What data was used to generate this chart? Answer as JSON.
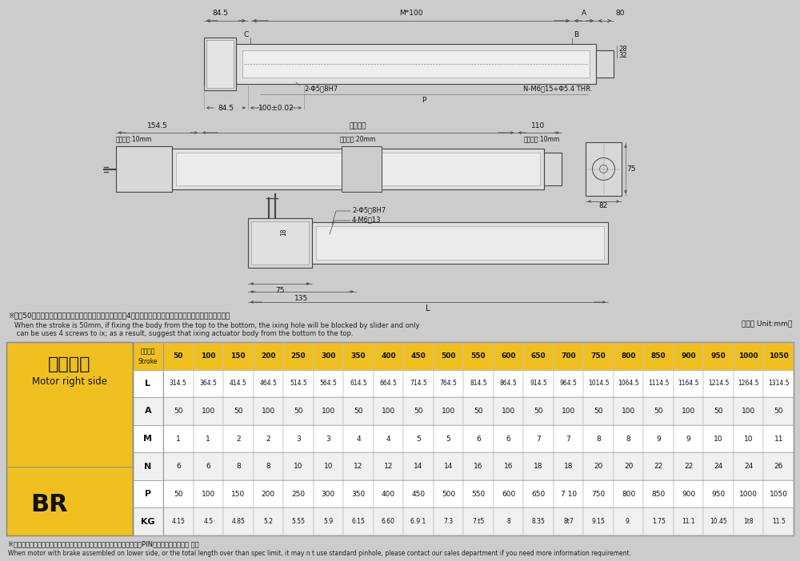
{
  "bg_color": "#cccccc",
  "diagram_bg": "#d4d4d4",
  "white_panel": "#e8e8e8",
  "yellow_color": "#f0c020",
  "line_color": "#444444",
  "dim_color": "#333333",
  "note_cn": "※行程50時，因本體上鎖式固定孔會被滑座遮住，僅能使用4支螺絲固定，建議客戶本體使用下鎖式固定孔鎖附。",
  "note_en1": "When the stroke is 50mm, if fixing the body from the top to the bottom, the ixing hole will be blocked by slider and only",
  "note_en2": " can be uses 4 screws to ix; as a result, suggest that ixing actuator body from the bottom to the top.",
  "unit_label": "（單位 Unit:mm）",
  "title_cn": "馬達右折",
  "title_en": "Motor right side",
  "title_br": "BR",
  "stroke_header_cn": "有效行程",
  "stroke_header_en": "Stroke",
  "strokes": [
    50,
    100,
    150,
    200,
    250,
    300,
    350,
    400,
    450,
    500,
    550,
    600,
    650,
    700,
    750,
    800,
    850,
    900,
    950,
    1000,
    1050
  ],
  "row_L_str": [
    "314.5",
    "364.5",
    "414.5",
    "464.5",
    "514.5",
    "564.5",
    "614.5",
    "664.5",
    "714.5",
    "764.5",
    "814.5",
    "864.5",
    "914.5",
    "964.5",
    "1014.5",
    "1064.5",
    "1114.5",
    "1164.5",
    "1214.5",
    "1264.5",
    "1314.5"
  ],
  "row_A_str": [
    "50",
    "100",
    "50",
    "100",
    "50",
    "100",
    "50",
    "100",
    "50",
    "100",
    "50",
    "100",
    "50",
    "100",
    "50",
    "100",
    "50",
    "100",
    "50",
    "100",
    "50"
  ],
  "row_M_str": [
    "1",
    "1",
    "2",
    "2",
    "3",
    "3",
    "4",
    "4",
    "5",
    "5",
    "6",
    "6",
    "7",
    "7",
    "8",
    "8",
    "9",
    "9",
    "10",
    "10",
    "11"
  ],
  "row_N_str": [
    "6",
    "6",
    "8",
    "8",
    "10",
    "10",
    "12",
    "12",
    "14",
    "14",
    "16",
    "16",
    "18",
    "18",
    "20",
    "20",
    "22",
    "22",
    "24",
    "24",
    "26"
  ],
  "row_P_str": [
    "50",
    "100",
    "150",
    "200",
    "250",
    "300",
    "350",
    "400",
    "450",
    "500",
    "550",
    "600",
    "650",
    "7 10",
    "750",
    "800",
    "850",
    "900",
    "950",
    "1000",
    "1050"
  ],
  "row_KG_str": [
    "4.15",
    "4.5",
    "4.85",
    "5.2",
    "5.55",
    "5.9",
    "6.15",
    "6.60",
    "6.9 1",
    "7.3",
    "7.t5",
    "8",
    "8.35",
    "8t7",
    "9.15",
    "9.",
    "1.75",
    "11.1",
    "10.45",
    "1t8",
    "11.5"
  ],
  "note2_cn": "※馬達下折時，若選用剎車馬達，或是超出馬達總長度限制時無法套用標準PIN孔，如有需求請洽我 司。",
  "note2_en": "When motor with brake assembled on lower side, or the total length over than spec limit, it may n t use standard pinhole, please contact our sales department if you need more information requirement."
}
